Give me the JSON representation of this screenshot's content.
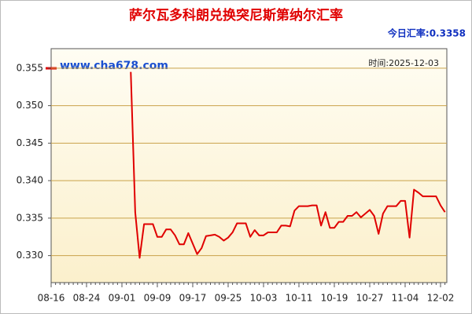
{
  "chart_data": {
    "type": "line",
    "title": "萨尔瓦多科朗兑换突尼斯第纳尔汇率",
    "today_rate": "今日汇率:0.3358",
    "watermark": "www.cha678.com",
    "time_note": "时间:2025-12-03",
    "categories": [
      "08-16",
      null,
      null,
      null,
      null,
      null,
      null,
      null,
      "08-24",
      null,
      null,
      null,
      null,
      null,
      null,
      null,
      "09-01",
      null,
      null,
      null,
      null,
      null,
      null,
      null,
      "09-09",
      null,
      null,
      null,
      null,
      null,
      null,
      null,
      "09-17",
      null,
      null,
      null,
      null,
      null,
      null,
      null,
      "09-25",
      null,
      null,
      null,
      null,
      null,
      null,
      null,
      "10-03",
      null,
      null,
      null,
      null,
      null,
      null,
      null,
      "10-11",
      null,
      null,
      null,
      null,
      null,
      null,
      null,
      "10-19",
      null,
      null,
      null,
      null,
      null,
      null,
      null,
      "10-27",
      null,
      null,
      null,
      null,
      null,
      null,
      null,
      "11-04",
      null,
      null,
      null,
      null,
      null,
      null,
      null,
      "12-02",
      null
    ],
    "values": [
      null,
      null,
      null,
      null,
      null,
      null,
      null,
      null,
      null,
      null,
      null,
      null,
      null,
      null,
      null,
      null,
      null,
      null,
      0.3545,
      0.3358,
      0.3297,
      0.3342,
      0.3342,
      0.3342,
      0.3325,
      0.3325,
      0.3335,
      0.3335,
      0.3327,
      0.3315,
      0.3315,
      0.333,
      0.3316,
      0.3302,
      0.331,
      0.3326,
      0.3327,
      0.3328,
      0.3325,
      0.332,
      0.3324,
      0.3331,
      0.3343,
      0.3343,
      0.3343,
      0.3325,
      0.3334,
      0.3327,
      0.3327,
      0.3331,
      0.3331,
      0.3331,
      0.334,
      0.334,
      0.3339,
      0.336,
      0.3366,
      0.3366,
      0.3366,
      0.3367,
      0.3367,
      0.334,
      0.3358,
      0.3337,
      0.3337,
      0.3345,
      0.3345,
      0.3353,
      0.3353,
      0.3358,
      0.3351,
      0.3356,
      0.3361,
      0.3353,
      0.3329,
      0.3356,
      0.3366,
      0.3366,
      0.3366,
      0.3373,
      0.3373,
      0.3324,
      0.3388,
      0.3384,
      0.3379,
      0.3379,
      0.3379,
      0.3379,
      0.3367,
      0.3358
    ],
    "color": "#e00000",
    "ylim": [
      0.3264,
      0.3576
    ],
    "yticks": [
      {
        "value": 0.33,
        "label": "0.330"
      },
      {
        "value": 0.335,
        "label": "0.335"
      },
      {
        "value": 0.34,
        "label": "0.340"
      },
      {
        "value": 0.345,
        "label": "0.345"
      },
      {
        "value": 0.35,
        "label": "0.350"
      },
      {
        "value": 0.355,
        "label": "0.355"
      }
    ],
    "grid": true
  }
}
